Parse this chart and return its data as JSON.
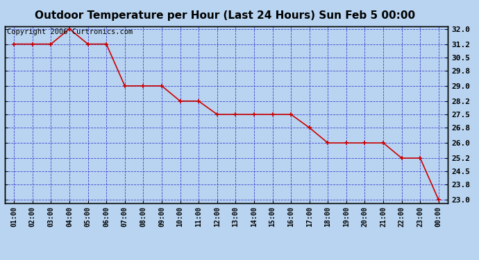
{
  "title": "Outdoor Temperature per Hour (Last 24 Hours) Sun Feb 5 00:00",
  "copyright": "Copyright 2006 Curtronics.com",
  "x_labels": [
    "01:00",
    "02:00",
    "03:00",
    "04:00",
    "05:00",
    "06:00",
    "07:00",
    "08:00",
    "09:00",
    "10:00",
    "11:00",
    "12:00",
    "13:00",
    "14:00",
    "15:00",
    "16:00",
    "17:00",
    "18:00",
    "19:00",
    "20:00",
    "21:00",
    "22:00",
    "23:00",
    "00:00"
  ],
  "y_values": [
    31.2,
    31.2,
    31.2,
    32.0,
    31.2,
    31.2,
    29.0,
    29.0,
    29.0,
    28.2,
    28.2,
    27.5,
    27.5,
    27.5,
    27.5,
    27.5,
    26.8,
    26.0,
    26.0,
    26.0,
    26.0,
    25.2,
    25.2,
    23.0
  ],
  "y_ticks": [
    23.0,
    23.8,
    24.5,
    25.2,
    26.0,
    26.8,
    27.5,
    28.2,
    29.0,
    29.8,
    30.5,
    31.2,
    32.0
  ],
  "y_min": 22.85,
  "y_max": 32.15,
  "line_color": "#cc0000",
  "marker_color": "#cc0000",
  "bg_color": "#b8d4f0",
  "plot_bg_color": "#b8d4f0",
  "grid_color": "#3333cc",
  "border_color": "#000000",
  "title_fontsize": 11,
  "copyright_fontsize": 7.5
}
